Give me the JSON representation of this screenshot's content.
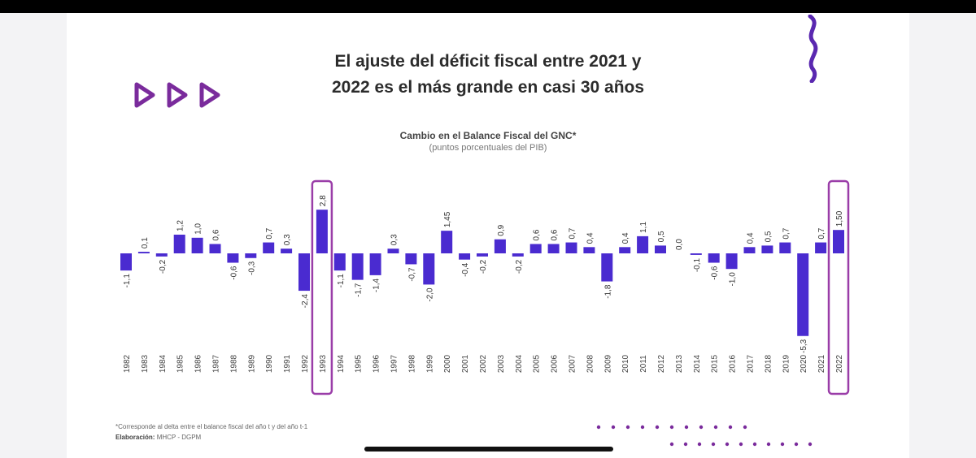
{
  "title_line1": "El ajuste del déficit fiscal entre 2021 y",
  "title_line2": "2022 es el más grande en casi 30 años",
  "footnote": "*Corresponde al delta entre el balance fiscal del año t y del año t-1",
  "credit_label": "Elaboración:",
  "credit_value": "MHCP - DGPM",
  "colors": {
    "bar": "#4a2bd0",
    "highlight": "#9a3da8",
    "accent": "#7a2b9c"
  },
  "chart_data": {
    "type": "bar",
    "title": "Cambio en el Balance Fiscal del GNC*",
    "subtitle": "(puntos porcentuales del PIB)",
    "categories": [
      "1982",
      "1983",
      "1984",
      "1985",
      "1986",
      "1987",
      "1988",
      "1989",
      "1990",
      "1991",
      "1992",
      "1993",
      "1994",
      "1995",
      "1996",
      "1997",
      "1998",
      "1999",
      "2000",
      "2001",
      "2002",
      "2003",
      "2004",
      "2005",
      "2006",
      "2007",
      "2008",
      "2009",
      "2010",
      "2011",
      "2012",
      "2013",
      "2014",
      "2015",
      "2016",
      "2017",
      "2018",
      "2019",
      "2020",
      "2021",
      "2022"
    ],
    "values": [
      -1.1,
      0.1,
      -0.2,
      1.2,
      1.0,
      0.6,
      -0.6,
      -0.3,
      0.7,
      0.3,
      -2.4,
      2.8,
      -1.1,
      -1.7,
      -1.4,
      0.3,
      -0.7,
      -2.0,
      1.45,
      -0.4,
      -0.2,
      0.9,
      -0.2,
      0.6,
      0.6,
      0.7,
      0.4,
      -1.8,
      0.4,
      1.1,
      0.5,
      0.0,
      -0.1,
      -0.6,
      -1.0,
      0.4,
      0.5,
      0.7,
      -5.3,
      0.7,
      1.5
    ],
    "labels": [
      "-1,1",
      "0,1",
      "-0,2",
      "1,2",
      "1,0",
      "0,6",
      "-0,6",
      "-0,3",
      "0,7",
      "0,3",
      "-2,4",
      "2,8",
      "-1,1",
      "-1,7",
      "-1,4",
      "0,3",
      "-0,7",
      "-2,0",
      "1,45",
      "-0,4",
      "-0,2",
      "0,9",
      "-0,2",
      "0,6",
      "0,6",
      "0,7",
      "0,4",
      "-1,8",
      "0,4",
      "1,1",
      "0,5",
      "0,0",
      "-0,1",
      "-0,6",
      "-1,0",
      "0,4",
      "0,5",
      "0,7",
      "-5,3",
      "0,7",
      "1,50"
    ],
    "highlighted": [
      "1993",
      "2022"
    ],
    "xlabel": "",
    "ylabel": ""
  }
}
